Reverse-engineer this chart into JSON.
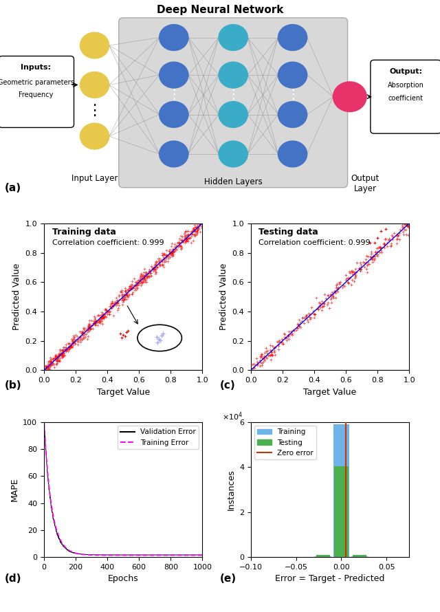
{
  "title_dnn": "Deep Neural Network",
  "input_label": "Input Layer",
  "hidden_label": "Hidden Layers",
  "output_label": "Output\nLayer",
  "panel_labels": [
    "(a)",
    "(b)",
    "(c)",
    "(d)",
    "(e)"
  ],
  "train_title": "Training data",
  "train_corr": "Correlation coefficient: 0.999",
  "test_title": "Testing data",
  "test_corr": "Correlation coefficient: 0.999",
  "scatter_xlabel": "Target Value",
  "scatter_ylabel": "Predicted Value",
  "mape_xlabel": "Epochs",
  "mape_ylabel": "MAPE",
  "error_xlabel": "Error = Target - Predicted",
  "error_ylabel": "Instances",
  "node_color_input": "#E8C84A",
  "node_color_hidden1": "#4472C4",
  "node_color_hidden2": "#3BACC8",
  "node_color_output": "#E8336A",
  "node_color_bg": "#D8D8D8",
  "scatter_dot_color": "#FF0000",
  "scatter_line_color": "#0000FF",
  "val_error_color": "#000000",
  "train_error_color": "#FF00FF",
  "hist_train_color": "#6EB4E8",
  "hist_test_color": "#4CAF50",
  "zero_error_color": "#CC3300",
  "mape_ylim": [
    0,
    100
  ],
  "mape_xlim": [
    0,
    1000
  ],
  "error_xlim": [
    -0.1,
    0.075
  ],
  "error_ylim": [
    0,
    60000
  ]
}
